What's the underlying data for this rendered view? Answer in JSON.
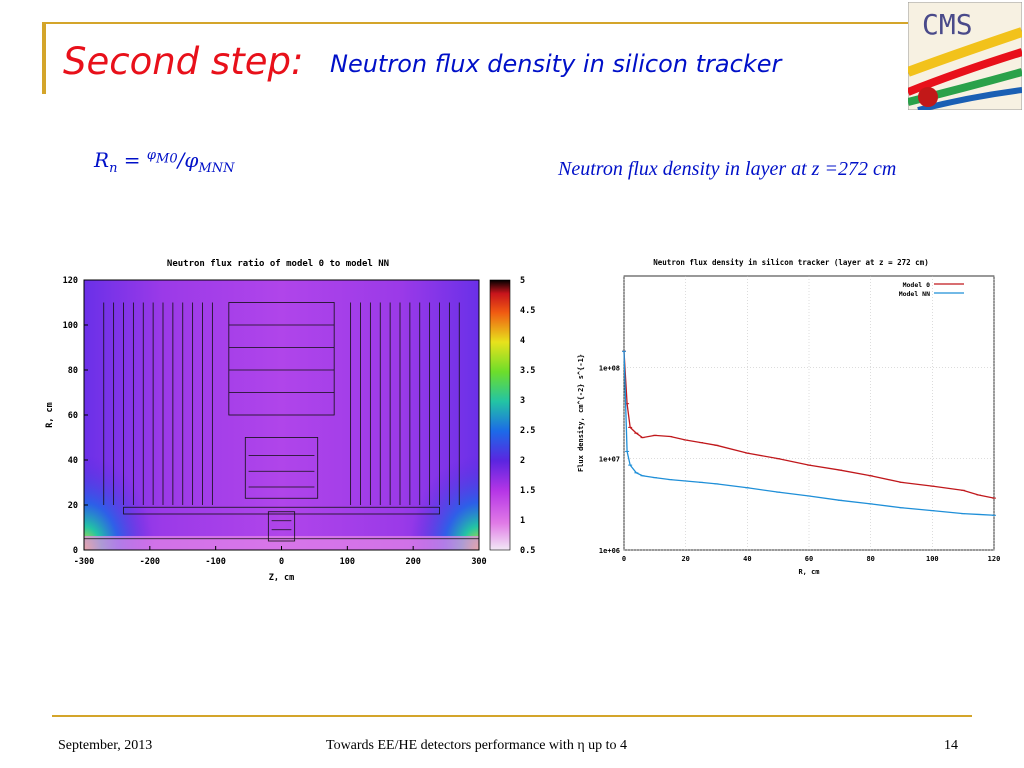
{
  "title": {
    "main": "Second step:",
    "sub": "Neutron flux density in silicon tracker"
  },
  "formula": {
    "lhs": "R",
    "lhs_sub": "n",
    "eq": " = ",
    "num": "φ",
    "num_sub": "M0",
    "slash": "/",
    "den": "φ",
    "den_sub": "MNN"
  },
  "caption_right": "Neutron flux density in layer at z =272 cm",
  "logo": {
    "text": "CMS",
    "colors": [
      "#f2c21b",
      "#e8101a",
      "#2aa14a",
      "#1a5fb4"
    ]
  },
  "footer": {
    "date": "September,  2013",
    "center": "Towards  EE/HE detectors performance with η up to 4",
    "page": "14"
  },
  "chart_data": [
    {
      "type": "heatmap",
      "title": "Neutron flux ratio of model 0 to model NN",
      "xlabel": "Z, cm",
      "ylabel": "R, cm",
      "xlim": [
        -300,
        300
      ],
      "ylim": [
        0,
        120
      ],
      "xticks": [
        "-300",
        "-200",
        "-100",
        "0",
        "100",
        "200",
        "300"
      ],
      "yticks": [
        "0",
        "20",
        "40",
        "60",
        "80",
        "100",
        "120"
      ],
      "colorbar": {
        "range": [
          0.5,
          5
        ],
        "ticks": [
          "0.5",
          "1",
          "1.5",
          "2",
          "2.5",
          "3",
          "3.5",
          "4",
          "4.5",
          "5"
        ]
      },
      "typical_ratio": 1.6
    },
    {
      "type": "line",
      "title": "Neutron flux density in silicon tracker (layer at z = 272 cm)",
      "xlabel": "R, cm",
      "ylabel": "Flux density, cm^{-2} s^{-1}",
      "xlim": [
        0,
        120
      ],
      "ylim": [
        1000000,
        1000000000
      ],
      "yscale": "log",
      "xticks": [
        "0",
        "20",
        "40",
        "60",
        "80",
        "100",
        "120"
      ],
      "yticks": [
        "1e+06",
        "1e+07",
        "1e+08"
      ],
      "legend": "top-right",
      "x": [
        0,
        1,
        2,
        4,
        6,
        10,
        15,
        20,
        25,
        30,
        40,
        50,
        60,
        70,
        80,
        90,
        100,
        110,
        115,
        120
      ],
      "series": [
        {
          "name": "Model 0",
          "color": "#c0181c",
          "values": [
            150000000,
            40000000,
            22000000,
            19000000,
            17000000,
            18000000,
            17500000,
            16000000,
            15000000,
            14000000,
            11500000,
            10000000,
            8500000,
            7500000,
            6500000,
            5500000,
            5000000,
            4500000,
            4000000,
            3700000
          ]
        },
        {
          "name": "Model NN",
          "color": "#1f8fd8",
          "values": [
            150000000,
            12000000,
            8500000,
            7000000,
            6500000,
            6200000,
            5900000,
            5700000,
            5500000,
            5300000,
            4800000,
            4300000,
            3900000,
            3500000,
            3200000,
            2900000,
            2700000,
            2500000,
            2450000,
            2400000
          ]
        }
      ]
    }
  ]
}
